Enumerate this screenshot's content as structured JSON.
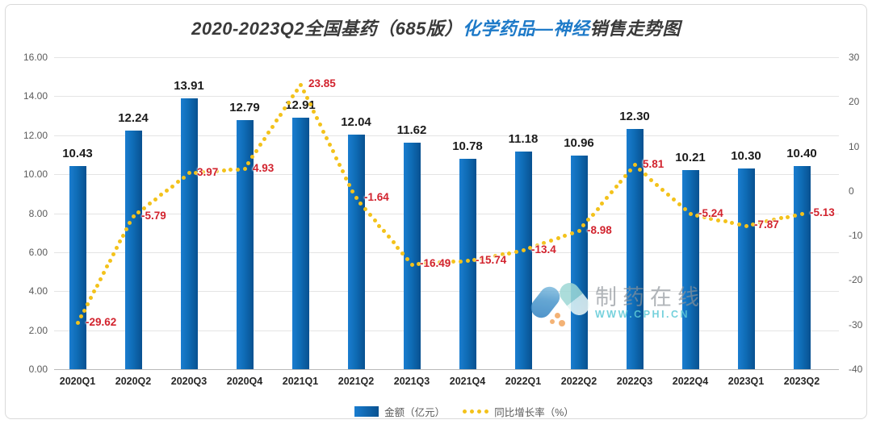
{
  "title": {
    "part1": "2020-2023Q2全国基药（685版）",
    "part2": "化学药品—神经",
    "part3": "销售走势图"
  },
  "watermark": {
    "name": "制药在线",
    "url": "WWW.CPHI.CN"
  },
  "legend": {
    "amount_label": "金额（亿元）",
    "growth_label": "同比增长率（%）"
  },
  "colors": {
    "bar_blue_light": "#1a7dcf",
    "bar_blue_dark": "#085190",
    "title_accent_blue": "#1e7ac8",
    "growth_line_yellow": "#f3c21b",
    "growth_label_red": "#d2232e",
    "watermark_teal": "#5ec9d6"
  },
  "chart_data": {
    "type": "bar+line",
    "title": "2020-2023Q2全国基药（685版）化学药品—神经销售走势图",
    "categories": [
      "2020Q1",
      "2020Q2",
      "2020Q3",
      "2020Q4",
      "2021Q1",
      "2021Q2",
      "2021Q3",
      "2021Q4",
      "2022Q1",
      "2022Q2",
      "2022Q3",
      "2022Q4",
      "2023Q1",
      "2023Q2"
    ],
    "series": [
      {
        "name": "金额（亿元）",
        "type": "bar",
        "axis": "left",
        "values": [
          10.43,
          12.24,
          13.91,
          12.79,
          12.91,
          12.04,
          11.62,
          10.78,
          11.18,
          10.96,
          12.3,
          10.21,
          10.3,
          10.4
        ],
        "labels": [
          "10.43",
          "12.24",
          "13.91",
          "12.79",
          "12.91",
          "12.04",
          "11.62",
          "10.78",
          "11.18",
          "10.96",
          "12.30",
          "10.21",
          "10.30",
          "10.40"
        ]
      },
      {
        "name": "同比增长率（%）",
        "type": "dotted-line",
        "axis": "right",
        "values": [
          -29.62,
          -5.79,
          3.97,
          4.93,
          23.85,
          -1.64,
          -16.49,
          -15.74,
          -13.4,
          -8.98,
          5.81,
          -5.24,
          -7.87,
          -5.13
        ],
        "labels": [
          "-29.62",
          "-5.79",
          "3.97",
          "4.93",
          "23.85",
          "-1.64",
          "-16.49",
          "-15.74",
          "-13.4",
          "-8.98",
          "5.81",
          "-5.24",
          "-7.87",
          "-5.13"
        ]
      }
    ],
    "left_axis": {
      "min": 0,
      "max": 16,
      "ticks": [
        "0.00",
        "2.00",
        "4.00",
        "6.00",
        "8.00",
        "10.00",
        "12.00",
        "14.00",
        "16.00"
      ]
    },
    "right_axis": {
      "min": -40,
      "max": 30,
      "ticks": [
        "-40",
        "-30",
        "-20",
        "-10",
        "0",
        "10",
        "20",
        "30"
      ]
    },
    "grid": "horizontal",
    "legend_position": "bottom-center"
  }
}
